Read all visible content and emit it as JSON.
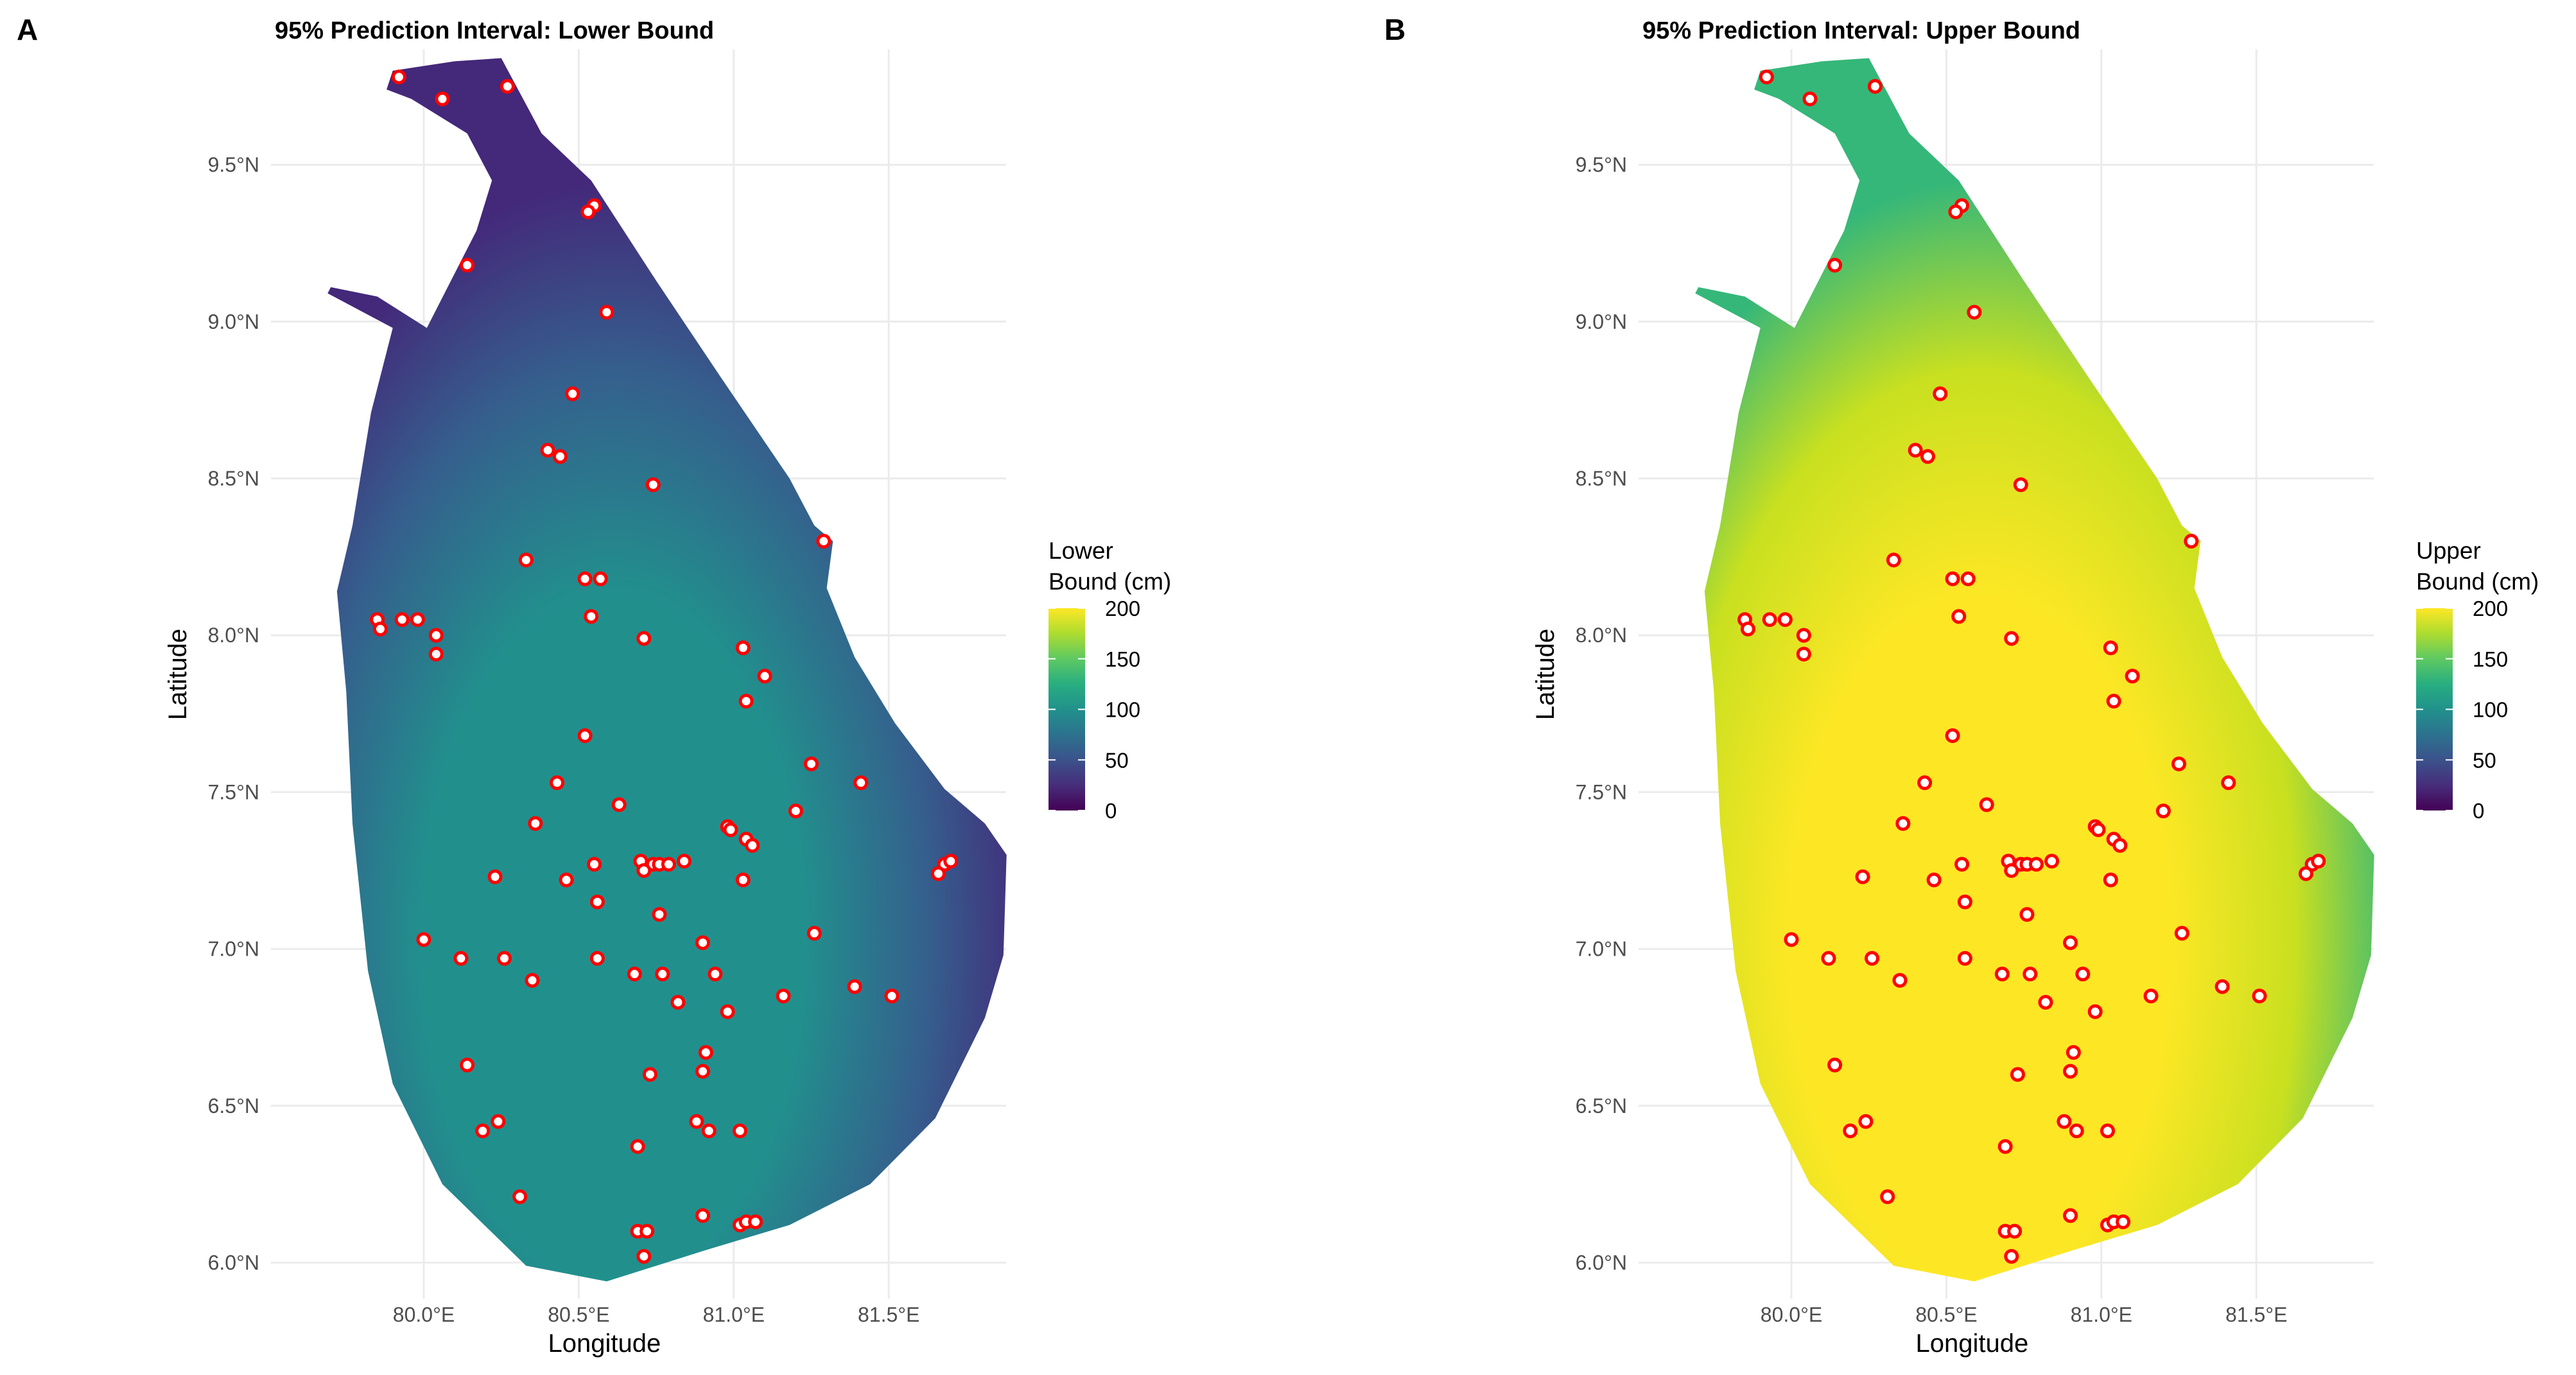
{
  "chart_data": [
    {
      "type": "map-raster",
      "panel_label": "A",
      "title": "95% Prediction Interval: Lower Bound",
      "xlabel": "Longitude",
      "ylabel": "Latitude",
      "x_ticks": [
        "80.0°E",
        "80.5°E",
        "81.0°E",
        "81.5°E"
      ],
      "y_ticks": [
        "6.0°N",
        "6.5°N",
        "7.0°N",
        "7.5°N",
        "8.0°N",
        "8.5°N",
        "9.0°N",
        "9.5°N"
      ],
      "legend": {
        "title_lines": [
          "Lower",
          "Bound (cm)"
        ],
        "ticks": [
          "0",
          "50",
          "100",
          "150",
          "200"
        ],
        "range": [
          0,
          200
        ],
        "colormap": "viridis",
        "placement": "right"
      },
      "grid": true,
      "colors": {
        "center": "#21908d",
        "mid": "#355f8d",
        "edge": "#44287a"
      }
    },
    {
      "type": "map-raster",
      "panel_label": "B",
      "title": "95% Prediction Interval: Upper Bound",
      "xlabel": "Longitude",
      "ylabel": "Latitude",
      "x_ticks": [
        "80.0°E",
        "80.5°E",
        "81.0°E",
        "81.5°E"
      ],
      "y_ticks": [
        "6.0°N",
        "6.5°N",
        "7.0°N",
        "7.5°N",
        "8.0°N",
        "8.5°N",
        "9.0°N",
        "9.5°N"
      ],
      "legend": {
        "title_lines": [
          "Upper",
          "Bound (cm)"
        ],
        "ticks": [
          "0",
          "50",
          "100",
          "150",
          "200"
        ],
        "range": [
          0,
          200
        ],
        "colormap": "viridis",
        "placement": "right"
      },
      "grid": true,
      "colors": {
        "center": "#fde725",
        "mid": "#c8e020",
        "edge": "#35b779"
      }
    }
  ],
  "sites": {
    "marker_fill": "#ffffff",
    "marker_stroke": "#ff0000",
    "points": [
      [
        79.92,
        9.78
      ],
      [
        80.06,
        9.71
      ],
      [
        80.27,
        9.75
      ],
      [
        80.55,
        9.37
      ],
      [
        80.53,
        9.35
      ],
      [
        80.14,
        9.18
      ],
      [
        80.59,
        9.03
      ],
      [
        80.48,
        8.77
      ],
      [
        80.4,
        8.59
      ],
      [
        80.44,
        8.57
      ],
      [
        80.74,
        8.48
      ],
      [
        81.29,
        8.3
      ],
      [
        80.33,
        8.24
      ],
      [
        80.52,
        8.18
      ],
      [
        80.57,
        8.18
      ],
      [
        79.85,
        8.05
      ],
      [
        79.86,
        8.02
      ],
      [
        79.93,
        8.05
      ],
      [
        79.98,
        8.05
      ],
      [
        80.04,
        8.0
      ],
      [
        80.04,
        7.94
      ],
      [
        80.54,
        8.06
      ],
      [
        80.71,
        7.99
      ],
      [
        81.03,
        7.96
      ],
      [
        81.1,
        7.87
      ],
      [
        81.04,
        7.79
      ],
      [
        80.52,
        7.68
      ],
      [
        80.43,
        7.53
      ],
      [
        81.25,
        7.59
      ],
      [
        81.41,
        7.53
      ],
      [
        80.63,
        7.46
      ],
      [
        80.36,
        7.4
      ],
      [
        80.98,
        7.39
      ],
      [
        80.99,
        7.38
      ],
      [
        81.04,
        7.35
      ],
      [
        81.06,
        7.33
      ],
      [
        81.2,
        7.44
      ],
      [
        80.7,
        7.28
      ],
      [
        80.74,
        7.27
      ],
      [
        80.76,
        7.27
      ],
      [
        80.79,
        7.27
      ],
      [
        80.84,
        7.28
      ],
      [
        80.71,
        7.25
      ],
      [
        80.55,
        7.27
      ],
      [
        80.56,
        7.15
      ],
      [
        80.23,
        7.23
      ],
      [
        80.46,
        7.22
      ],
      [
        81.03,
        7.22
      ],
      [
        81.68,
        7.27
      ],
      [
        81.66,
        7.24
      ],
      [
        81.7,
        7.28
      ],
      [
        80.76,
        7.11
      ],
      [
        81.26,
        7.05
      ],
      [
        80.0,
        7.03
      ],
      [
        80.9,
        7.02
      ],
      [
        80.12,
        6.97
      ],
      [
        80.26,
        6.97
      ],
      [
        80.56,
        6.97
      ],
      [
        80.35,
        6.9
      ],
      [
        80.68,
        6.92
      ],
      [
        80.77,
        6.92
      ],
      [
        80.94,
        6.92
      ],
      [
        80.82,
        6.83
      ],
      [
        81.16,
        6.85
      ],
      [
        81.39,
        6.88
      ],
      [
        81.51,
        6.85
      ],
      [
        80.98,
        6.8
      ],
      [
        80.91,
        6.67
      ],
      [
        80.9,
        6.61
      ],
      [
        80.14,
        6.63
      ],
      [
        80.73,
        6.6
      ],
      [
        80.24,
        6.45
      ],
      [
        80.19,
        6.42
      ],
      [
        80.88,
        6.45
      ],
      [
        80.92,
        6.42
      ],
      [
        81.02,
        6.42
      ],
      [
        80.69,
        6.37
      ],
      [
        80.31,
        6.21
      ],
      [
        80.9,
        6.15
      ],
      [
        80.69,
        6.1
      ],
      [
        80.72,
        6.1
      ],
      [
        81.02,
        6.12
      ],
      [
        81.04,
        6.13
      ],
      [
        81.07,
        6.13
      ],
      [
        80.71,
        6.02
      ]
    ]
  }
}
